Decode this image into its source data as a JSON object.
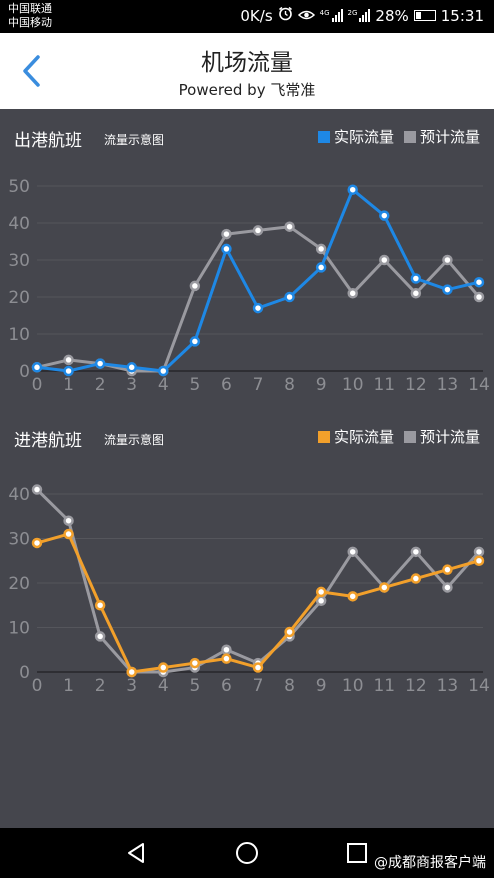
{
  "status_bar": {
    "carrier1": "中国联通",
    "carrier2": "中国移动",
    "speed": "0K/s",
    "net1": "4G",
    "net2": "2G",
    "battery": "28%",
    "time": "15:31"
  },
  "header": {
    "title": "机场流量",
    "subtitle": "Powered by 飞常准"
  },
  "panels": [
    {
      "title": "出港航班",
      "subtitle": "流量示意图",
      "legend_actual": "实际流量",
      "legend_forecast": "预计流量"
    },
    {
      "title": "进港航班",
      "subtitle": "流量示意图",
      "legend_actual": "实际流量",
      "legend_forecast": "预计流量"
    }
  ],
  "colors": {
    "background": "#45464d",
    "grid": "#55565c",
    "tick": "#8d8e93",
    "actual_out": "#1e88e5",
    "actual_in": "#f2a02b",
    "forecast": "#9a9aa0",
    "status_bar": "#000000",
    "header": "#ffffff",
    "back_arrow": "#3a8dde"
  },
  "chart_data": [
    {
      "type": "line",
      "x": [
        0,
        1,
        2,
        3,
        4,
        5,
        6,
        7,
        8,
        9,
        10,
        11,
        12,
        13,
        14
      ],
      "ylim": [
        0,
        50
      ],
      "yticks": [
        0,
        10,
        20,
        30,
        40,
        50
      ],
      "series": [
        {
          "name": "实际流量",
          "values": [
            1,
            0,
            2,
            1,
            0,
            8,
            33,
            17,
            20,
            28,
            49,
            42,
            25,
            22,
            24
          ]
        },
        {
          "name": "预计流量",
          "values": [
            1,
            3,
            2,
            0,
            0,
            23,
            37,
            38,
            39,
            33,
            21,
            30,
            21,
            30,
            20
          ]
        }
      ]
    },
    {
      "type": "line",
      "x": [
        0,
        1,
        2,
        3,
        4,
        5,
        6,
        7,
        8,
        9,
        10,
        11,
        12,
        13,
        14
      ],
      "ylim": [
        0,
        40
      ],
      "yticks": [
        0,
        10,
        20,
        30,
        40
      ],
      "series": [
        {
          "name": "实际流量",
          "values": [
            29,
            31,
            15,
            0,
            1,
            2,
            3,
            1,
            9,
            18,
            17,
            19,
            21,
            23,
            25
          ]
        },
        {
          "name": "预计流量",
          "values": [
            41,
            34,
            8,
            0,
            0,
            1,
            5,
            2,
            8,
            16,
            27,
            19,
            27,
            19,
            27
          ]
        }
      ]
    }
  ],
  "bottom_nav": {
    "watermark": "@成都商报客户端"
  }
}
